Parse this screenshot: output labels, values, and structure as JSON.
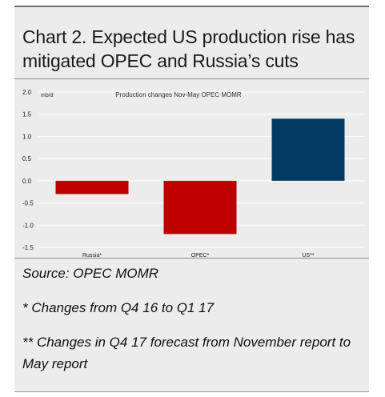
{
  "title": "Chart 2. Expected US production rise has mitigated OPEC and Russia’s cuts",
  "chart_data": {
    "type": "bar",
    "subtitle": "Production changes Nov-May OPEC MOMR",
    "unit_label": "mb/d",
    "categories": [
      "Russia*",
      "OPEC*",
      "US**"
    ],
    "values": [
      -0.3,
      -1.2,
      1.4
    ],
    "colors": [
      "#c00000",
      "#c00000",
      "#003a63"
    ],
    "ylim": [
      -1.5,
      2.0
    ],
    "yticks": [
      2.0,
      1.5,
      1.0,
      0.5,
      0.0,
      -0.5,
      -1.0,
      -1.5
    ],
    "ytick_labels": [
      "2.0",
      "1.5",
      "1.0",
      "0.5",
      "0.0",
      "-0.5",
      "-1.0",
      "-1.5"
    ],
    "grid": true,
    "legend": "none"
  },
  "footer": {
    "source": "Source: OPEC MOMR",
    "note1": "* Changes from Q4 16 to Q1 17",
    "note2": "** Changes in Q4 17 forecast from November report to May report"
  }
}
